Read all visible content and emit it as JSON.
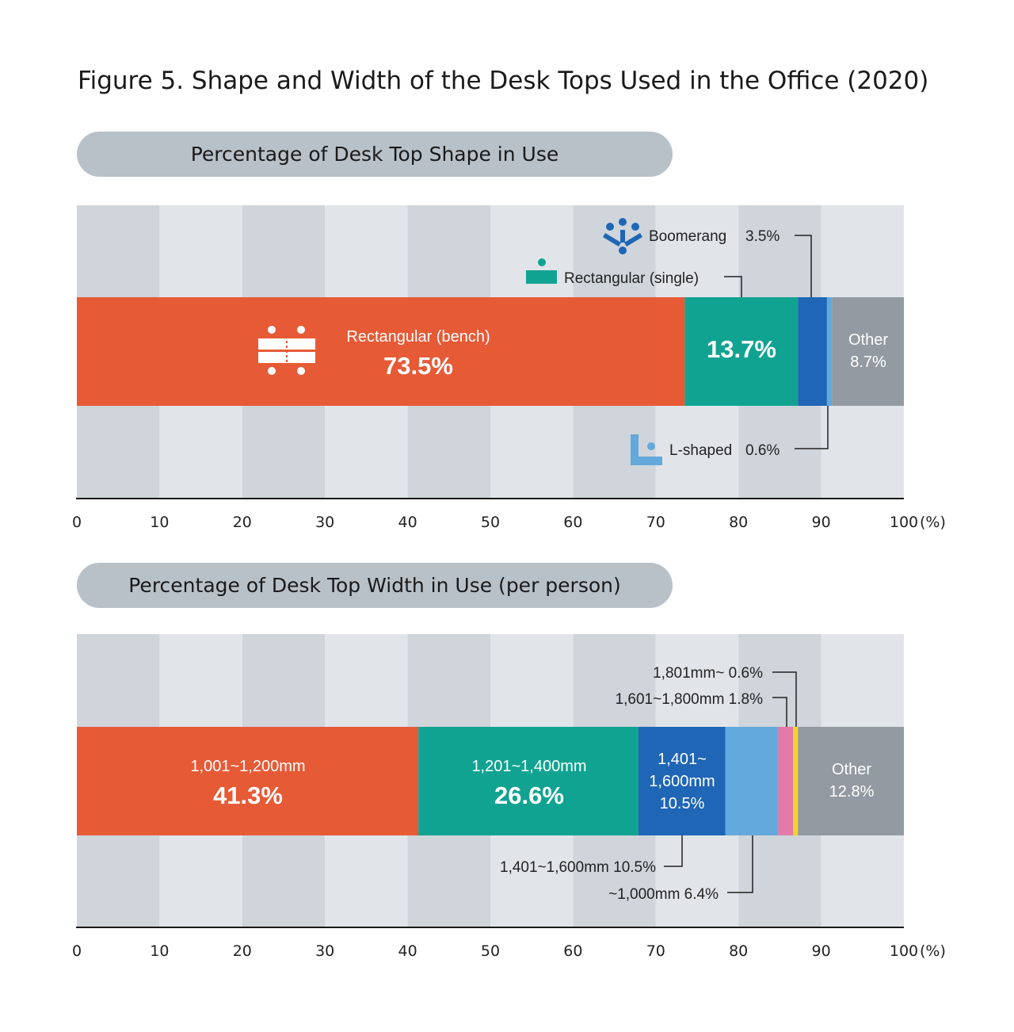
{
  "figure_title": "Figure 5. Shape and Width of the Desk Tops Used in the Office (2020)",
  "colors": {
    "red": "#e65a36",
    "teal": "#11a391",
    "blue": "#1f66b6",
    "light_blue": "#63a9dc",
    "gray": "#939aa1",
    "pink": "#e37aa9",
    "yellow": "#f5d32a",
    "stripe_dark": "#cfd5da",
    "stripe_light": "#e1e5e9",
    "pill": "#b9c1c8"
  },
  "icons": [
    "bench-desk-icon",
    "single-desk-icon",
    "boomerang-desk-icon",
    "l-shaped-desk-icon"
  ],
  "chart_data": [
    {
      "type": "bar",
      "title": "Percentage of Desk Top Shape in Use",
      "orientation": "horizontal-stacked",
      "xlim": [
        0,
        100
      ],
      "x_ticks": [
        "0",
        "10",
        "20",
        "30",
        "40",
        "50",
        "60",
        "70",
        "80",
        "90",
        "100"
      ],
      "x_unit": "(%)",
      "grid": true,
      "series": [
        {
          "name": "Rectangular (bench)",
          "value": 73.5,
          "label": "73.5%",
          "color": "#e65a36"
        },
        {
          "name": "Rectangular (single)",
          "value": 13.7,
          "label": "13.7%",
          "color": "#11a391"
        },
        {
          "name": "Boomerang",
          "value": 3.5,
          "label": "3.5%",
          "color": "#1f66b6"
        },
        {
          "name": "L-shaped",
          "value": 0.6,
          "label": "0.6%",
          "color": "#63a9dc"
        },
        {
          "name": "Other",
          "value": 8.7,
          "label": "8.7%",
          "color": "#939aa1"
        }
      ]
    },
    {
      "type": "bar",
      "title": "Percentage of Desk Top Width in Use (per person)",
      "orientation": "horizontal-stacked",
      "xlim": [
        0,
        100
      ],
      "x_ticks": [
        "0",
        "10",
        "20",
        "30",
        "40",
        "50",
        "60",
        "70",
        "80",
        "90",
        "100"
      ],
      "x_unit": "(%)",
      "grid": true,
      "series": [
        {
          "name": "1,001~1,200mm",
          "value": 41.3,
          "label": "41.3%",
          "color": "#e65a36"
        },
        {
          "name": "1,201~1,400mm",
          "value": 26.6,
          "label": "26.6%",
          "color": "#11a391"
        },
        {
          "name": "1,401~1,600mm",
          "value": 10.5,
          "label": "10.5%",
          "color": "#1f66b6"
        },
        {
          "name": "~1,000mm",
          "value": 6.4,
          "label": "6.4%",
          "color": "#63a9dc"
        },
        {
          "name": "1,601~1,800mm",
          "value": 1.8,
          "label": "1.8%",
          "color": "#e37aa9"
        },
        {
          "name": "1,801mm~",
          "value": 0.6,
          "label": "0.6%",
          "color": "#f5d32a"
        },
        {
          "name": "Other",
          "value": 12.8,
          "label": "12.8%",
          "color": "#939aa1"
        }
      ]
    }
  ],
  "labels": {
    "shape": {
      "bench_name": "Rectangular (bench)",
      "bench_value": "73.5%",
      "single_value": "13.7%",
      "other_name": "Other",
      "other_value": "8.7%",
      "boomerang_name": "Boomerang",
      "boomerang_value": "3.5%",
      "single_name": "Rectangular (single)",
      "lshaped_name": "L-shaped",
      "lshaped_value": "0.6%"
    },
    "width": {
      "w1001_name": "1,001~1,200mm",
      "w1001_value": "41.3%",
      "w1201_name": "1,201~1,400mm",
      "w1201_value": "26.6%",
      "w1401_line1": "1,401~",
      "w1401_line2": "1,600mm",
      "w1401_value": "10.5%",
      "other_name": "Other",
      "other_value": "12.8%",
      "callout_1801": "1,801mm~ 0.6%",
      "callout_1601": "1,601~1,800mm 1.8%",
      "callout_1401": "1,401~1,600mm 10.5%",
      "callout_1000": "~1,000mm 6.4%"
    }
  }
}
